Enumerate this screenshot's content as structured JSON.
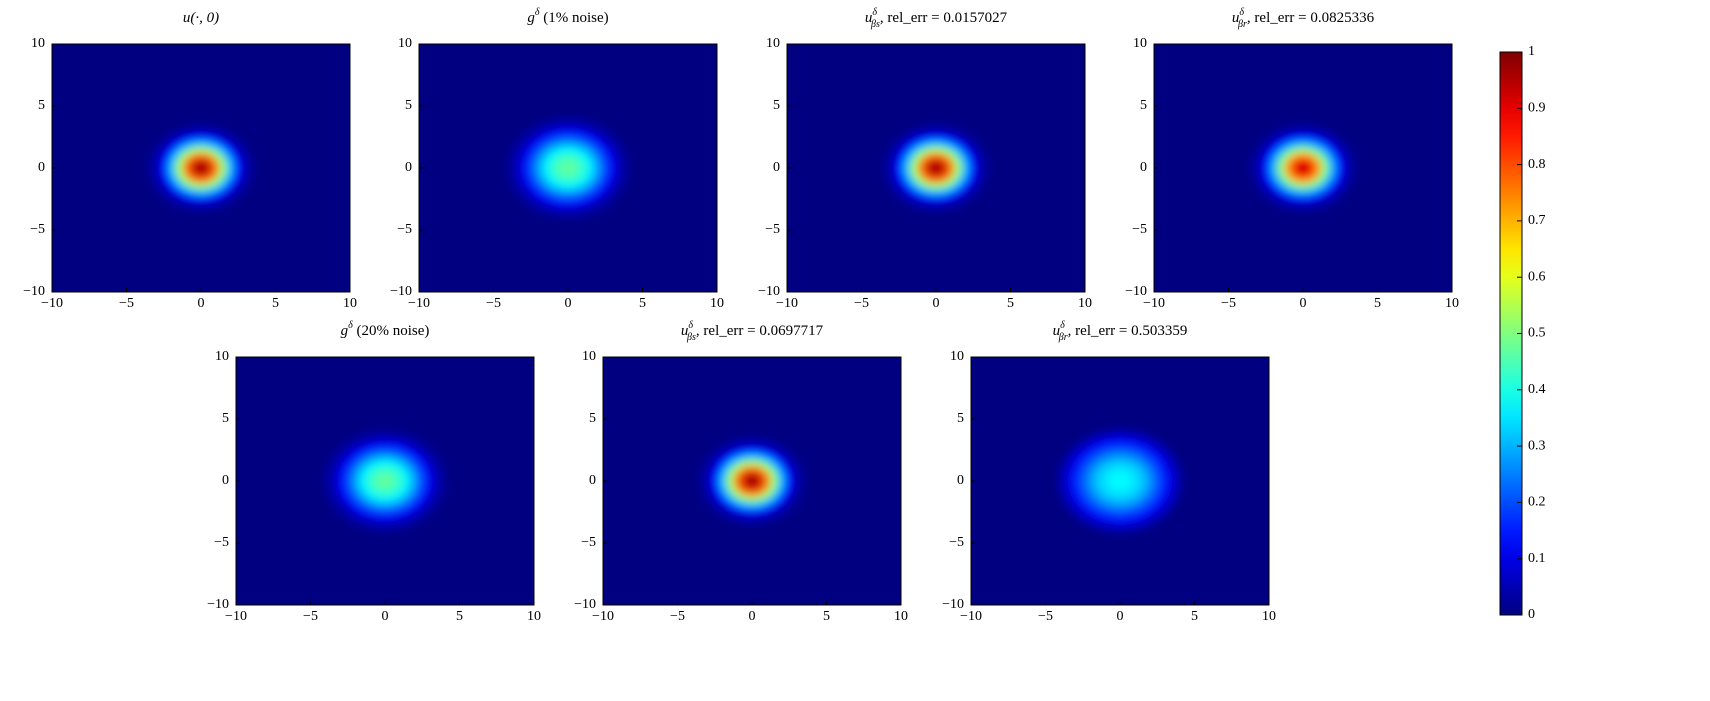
{
  "chart_data": [
    {
      "type": "heatmap",
      "title": {
        "base": "u(·, 0)"
      },
      "r": [
        0,
        0.5,
        1,
        1.5,
        2,
        2.5,
        3,
        3.5,
        4
      ],
      "values": [
        1,
        0.93,
        0.76,
        0.52,
        0.3,
        0.14,
        0.05,
        0.015,
        0
      ],
      "xlim": [
        -10,
        10
      ],
      "ylim": [
        -10,
        10
      ],
      "xticks": [
        {
          "value": -10,
          "label": "−10"
        },
        {
          "value": -5,
          "label": "−5"
        },
        0,
        5,
        10
      ],
      "yticks": [
        {
          "value": -10,
          "label": "−10"
        },
        {
          "value": -5,
          "label": "−5"
        },
        0,
        5,
        10
      ]
    },
    {
      "type": "heatmap",
      "title": {
        "base": "g",
        "sup": "δ",
        "text": " (1% noise)"
      },
      "r": [
        0,
        0.5,
        1,
        1.5,
        2,
        2.5,
        3,
        3.5,
        4
      ],
      "values": [
        0.47,
        0.46,
        0.42,
        0.36,
        0.28,
        0.19,
        0.11,
        0.05,
        0.02
      ],
      "xlim": [
        -10,
        10
      ],
      "ylim": [
        -10,
        10
      ],
      "xticks": [
        {
          "value": -10,
          "label": "−10"
        },
        {
          "value": -5,
          "label": "−5"
        },
        0,
        5,
        10
      ],
      "yticks": [
        {
          "value": -10,
          "label": "−10"
        },
        {
          "value": -5,
          "label": "−5"
        },
        0,
        5,
        10
      ]
    },
    {
      "type": "heatmap",
      "title": {
        "base": "u",
        "sup": "δ",
        "sub": "βs",
        "text": ", rel_err = 0.0157027"
      },
      "r": [
        0,
        0.5,
        1,
        1.5,
        2,
        2.5,
        3,
        3.5,
        4
      ],
      "values": [
        1,
        0.93,
        0.76,
        0.52,
        0.3,
        0.14,
        0.05,
        0.015,
        0
      ],
      "xlim": [
        -10,
        10
      ],
      "ylim": [
        -10,
        10
      ],
      "xticks": [
        {
          "value": -10,
          "label": "−10"
        },
        {
          "value": -5,
          "label": "−5"
        },
        0,
        5,
        10
      ],
      "yticks": [
        {
          "value": -10,
          "label": "−10"
        },
        {
          "value": -5,
          "label": "−5"
        },
        0,
        5,
        10
      ]
    },
    {
      "type": "heatmap",
      "title": {
        "base": "u",
        "sup": "δ",
        "sub": "βr",
        "text": ", rel_err = 0.0825336"
      },
      "r": [
        0,
        0.5,
        1,
        1.5,
        2,
        2.5,
        3,
        3.5,
        4
      ],
      "values": [
        0.95,
        0.89,
        0.73,
        0.5,
        0.29,
        0.14,
        0.05,
        0.015,
        0
      ],
      "xlim": [
        -10,
        10
      ],
      "ylim": [
        -10,
        10
      ],
      "xticks": [
        {
          "value": -10,
          "label": "−10"
        },
        {
          "value": -5,
          "label": "−5"
        },
        0,
        5,
        10
      ],
      "yticks": [
        {
          "value": -10,
          "label": "−10"
        },
        {
          "value": -5,
          "label": "−5"
        },
        0,
        5,
        10
      ]
    },
    {
      "type": "heatmap",
      "title": {
        "base": "g",
        "sup": "δ",
        "text": " (20% noise)"
      },
      "r": [
        0,
        0.5,
        1,
        1.5,
        2,
        2.5,
        3,
        3.5,
        4
      ],
      "values": [
        0.48,
        0.46,
        0.42,
        0.36,
        0.28,
        0.19,
        0.11,
        0.05,
        0.02
      ],
      "xlim": [
        -10,
        10
      ],
      "ylim": [
        -10,
        10
      ],
      "xticks": [
        {
          "value": -10,
          "label": "−10"
        },
        {
          "value": -5,
          "label": "−5"
        },
        0,
        5,
        10
      ],
      "yticks": [
        {
          "value": -10,
          "label": "−10"
        },
        {
          "value": -5,
          "label": "−5"
        },
        0,
        5,
        10
      ]
    },
    {
      "type": "heatmap",
      "title": {
        "base": "u",
        "sup": "δ",
        "sub": "βs",
        "text": ", rel_err = 0.0697717"
      },
      "r": [
        0,
        0.5,
        1,
        1.5,
        2,
        2.5,
        3,
        3.5,
        4
      ],
      "values": [
        1,
        0.93,
        0.76,
        0.52,
        0.3,
        0.14,
        0.05,
        0.015,
        0
      ],
      "xlim": [
        -10,
        10
      ],
      "ylim": [
        -10,
        10
      ],
      "xticks": [
        {
          "value": -10,
          "label": "−10"
        },
        {
          "value": -5,
          "label": "−5"
        },
        0,
        5,
        10
      ],
      "yticks": [
        {
          "value": -10,
          "label": "−10"
        },
        {
          "value": -5,
          "label": "−5"
        },
        0,
        5,
        10
      ]
    },
    {
      "type": "heatmap",
      "title": {
        "base": "u",
        "sup": "δ",
        "sub": "βr",
        "text": ", rel_err = 0.503359"
      },
      "r": [
        0,
        0.5,
        1,
        1.5,
        2,
        2.5,
        3,
        3.5,
        4
      ],
      "values": [
        0.38,
        0.37,
        0.35,
        0.32,
        0.27,
        0.21,
        0.15,
        0.09,
        0.04
      ],
      "xlim": [
        -10,
        10
      ],
      "ylim": [
        -10,
        10
      ],
      "xticks": [
        {
          "value": -10,
          "label": "−10"
        },
        {
          "value": -5,
          "label": "−5"
        },
        0,
        5,
        10
      ],
      "yticks": [
        {
          "value": -10,
          "label": "−10"
        },
        {
          "value": -5,
          "label": "−5"
        },
        0,
        5,
        10
      ]
    }
  ],
  "colorbar": {
    "clim": [
      0,
      1
    ],
    "ticks": [
      0,
      0.1,
      0.2,
      0.3,
      0.4,
      0.5,
      0.6,
      0.7,
      0.8,
      0.9,
      1
    ]
  }
}
